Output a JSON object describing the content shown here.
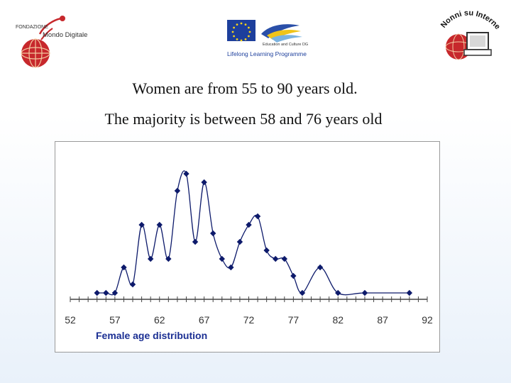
{
  "logos": {
    "left": {
      "icon": "fondazione-mondo-digitale-logo",
      "line1": "FONDAZIONE",
      "line2": "Mondo Digitale"
    },
    "center": {
      "icon": "eu-lifelong-learning-logo",
      "line1": "Education and Culture DG",
      "line2": "Lifelong Learning Programme"
    },
    "right": {
      "icon": "nonni-su-internet-logo",
      "text": "Nonni su Internet"
    }
  },
  "headline": {
    "line1": "Women are from 55 to 90 years old.",
    "line2": "The majority is between 58 and 76 years old"
  },
  "colors": {
    "series": "#0d1a6b",
    "axis": "#444444",
    "xlabel": "#1b2f93"
  },
  "chart_data": {
    "type": "line",
    "smooth": true,
    "marker": "diamond",
    "xlabel": "Female age distribution",
    "ylabel": "",
    "xlim": [
      52,
      92
    ],
    "ylim": [
      0,
      14
    ],
    "xticks": [
      52,
      57,
      62,
      67,
      72,
      77,
      82,
      87,
      92
    ],
    "grid": false,
    "legend": "none",
    "series": [
      {
        "x": [
          55,
          56,
          57,
          58,
          59,
          60,
          61,
          62,
          63,
          64,
          65,
          66,
          67,
          68,
          69,
          70,
          71,
          72,
          73,
          74,
          75,
          76,
          77,
          78,
          80,
          82,
          85,
          90
        ],
        "values": [
          0,
          0,
          0,
          3,
          1,
          8,
          4,
          8,
          4,
          12,
          14,
          6,
          13,
          7,
          4,
          3,
          6,
          8,
          9,
          5,
          4,
          4,
          2,
          0,
          3,
          0,
          0,
          0
        ]
      }
    ]
  }
}
